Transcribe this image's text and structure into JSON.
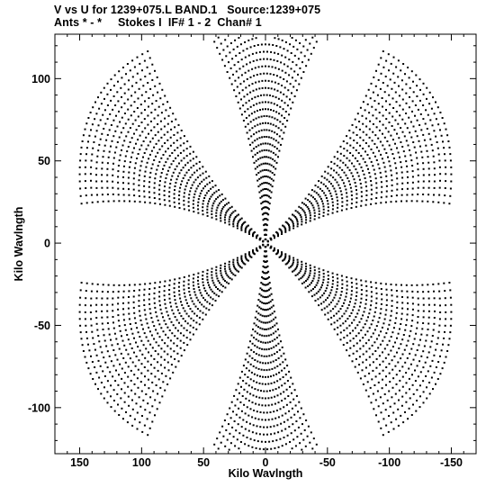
{
  "chart_data": {
    "type": "scatter",
    "title_line1": "V vs U for 1239+075.L BAND.1   Source:1239+075",
    "title_line2": "Ants * - *     Stokes I  IF# 1 - 2  Chan# 1",
    "xlabel": "Kilo Wavlngth",
    "ylabel": "Kilo Wavlngth",
    "xlim": [
      170,
      -170
    ],
    "ylim": [
      -128,
      127
    ],
    "x_ticks": [
      150,
      100,
      50,
      0,
      -50,
      -100,
      -150
    ],
    "y_ticks": [
      100,
      50,
      0,
      -50,
      -100
    ],
    "grid": false,
    "coverage_model": {
      "description": "VLA snapshot UV coverage: six-armed star, symmetric under (u,v) -> (-u,-v)",
      "arm_angles_deg": [
        90,
        30,
        -30
      ],
      "max_radius": 162,
      "n_tracks": 40
    }
  }
}
